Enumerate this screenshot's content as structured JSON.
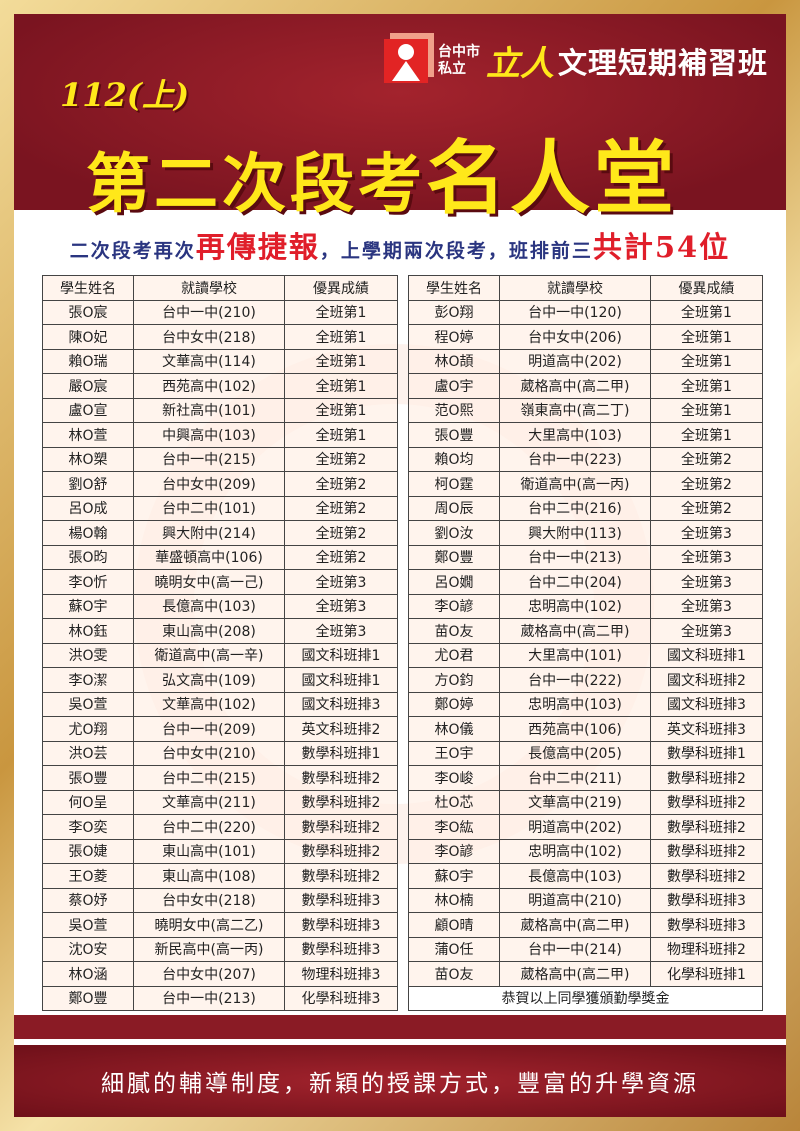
{
  "header": {
    "logo_small_1": "台中市",
    "logo_small_2": "私立",
    "logo_brand": "立人",
    "logo_name": "文理短期補習班",
    "term": "112(上)",
    "title_main": "第二次段考",
    "title_big": "名人堂"
  },
  "tagline": {
    "part1": "二次段考再次",
    "red1": "再傳捷報",
    "part2": "，上學期兩次段考，班排前三",
    "red2": "共計54位"
  },
  "columns": [
    "學生姓名",
    "就讀學校",
    "優異成績"
  ],
  "left_rows": [
    [
      "張O宸",
      "台中一中(210)",
      "全班第1"
    ],
    [
      "陳O妃",
      "台中女中(218)",
      "全班第1"
    ],
    [
      "賴O瑞",
      "文華高中(114)",
      "全班第1"
    ],
    [
      "嚴O宸",
      "西苑高中(102)",
      "全班第1"
    ],
    [
      "盧O宣",
      "新社高中(101)",
      "全班第1"
    ],
    [
      "林O萱",
      "中興高中(103)",
      "全班第1"
    ],
    [
      "林O槊",
      "台中一中(215)",
      "全班第2"
    ],
    [
      "劉O舒",
      "台中女中(209)",
      "全班第2"
    ],
    [
      "呂O成",
      "台中二中(101)",
      "全班第2"
    ],
    [
      "楊O翰",
      "興大附中(214)",
      "全班第2"
    ],
    [
      "張O昀",
      "華盛頓高中(106)",
      "全班第2"
    ],
    [
      "李O忻",
      "曉明女中(高一己)",
      "全班第3"
    ],
    [
      "蘇O宇",
      "長億高中(103)",
      "全班第3"
    ],
    [
      "林O鈺",
      "東山高中(208)",
      "全班第3"
    ],
    [
      "洪O雯",
      "衛道高中(高一辛)",
      "國文科班排1"
    ],
    [
      "李O潔",
      "弘文高中(109)",
      "國文科班排1"
    ],
    [
      "吳O萱",
      "文華高中(102)",
      "國文科班排3"
    ],
    [
      "尤O翔",
      "台中一中(209)",
      "英文科班排2"
    ],
    [
      "洪O芸",
      "台中女中(210)",
      "數學科班排1"
    ],
    [
      "張O豐",
      "台中二中(215)",
      "數學科班排2"
    ],
    [
      "何O呈",
      "文華高中(211)",
      "數學科班排2"
    ],
    [
      "李O奕",
      "台中二中(220)",
      "數學科班排2"
    ],
    [
      "張O婕",
      "東山高中(101)",
      "數學科班排2"
    ],
    [
      "王O菱",
      "東山高中(108)",
      "數學科班排2"
    ],
    [
      "蔡O妤",
      "台中女中(218)",
      "數學科班排3"
    ],
    [
      "吳O萱",
      "曉明女中(高二乙)",
      "數學科班排3"
    ],
    [
      "沈O安",
      "新民高中(高一丙)",
      "數學科班排3"
    ],
    [
      "林O涵",
      "台中女中(207)",
      "物理科班排3"
    ],
    [
      "鄭O豐",
      "台中一中(213)",
      "化學科班排3"
    ]
  ],
  "right_rows": [
    [
      "彭O翔",
      "台中一中(120)",
      "全班第1"
    ],
    [
      "程O婷",
      "台中女中(206)",
      "全班第1"
    ],
    [
      "林O頡",
      "明道高中(202)",
      "全班第1"
    ],
    [
      "盧O宇",
      "葳格高中(高二甲)",
      "全班第1"
    ],
    [
      "范O熙",
      "嶺東高中(高二丁)",
      "全班第1"
    ],
    [
      "張O豐",
      "大里高中(103)",
      "全班第1"
    ],
    [
      "賴O均",
      "台中一中(223)",
      "全班第2"
    ],
    [
      "柯O霆",
      "衛道高中(高一丙)",
      "全班第2"
    ],
    [
      "周O辰",
      "台中二中(216)",
      "全班第2"
    ],
    [
      "劉O汝",
      "興大附中(113)",
      "全班第3"
    ],
    [
      "鄭O豐",
      "台中一中(213)",
      "全班第3"
    ],
    [
      "呂O嫺",
      "台中二中(204)",
      "全班第3"
    ],
    [
      "李O諺",
      "忠明高中(102)",
      "全班第3"
    ],
    [
      "苗O友",
      "葳格高中(高二甲)",
      "全班第3"
    ],
    [
      "尤O君",
      "大里高中(101)",
      "國文科班排1"
    ],
    [
      "方O鈞",
      "台中一中(222)",
      "國文科班排2"
    ],
    [
      "鄭O婷",
      "忠明高中(103)",
      "國文科班排3"
    ],
    [
      "林O儀",
      "西苑高中(106)",
      "英文科班排3"
    ],
    [
      "王O宇",
      "長億高中(205)",
      "數學科班排1"
    ],
    [
      "李O峻",
      "台中二中(211)",
      "數學科班排2"
    ],
    [
      "杜O芯",
      "文華高中(219)",
      "數學科班排2"
    ],
    [
      "李O紘",
      "明道高中(202)",
      "數學科班排2"
    ],
    [
      "李O諺",
      "忠明高中(102)",
      "數學科班排2"
    ],
    [
      "蘇O宇",
      "長億高中(103)",
      "數學科班排2"
    ],
    [
      "林O楠",
      "明道高中(210)",
      "數學科班排3"
    ],
    [
      "顧O晴",
      "葳格高中(高二甲)",
      "數學科班排3"
    ],
    [
      "蒲O任",
      "台中一中(214)",
      "物理科班排2"
    ],
    [
      "苗O友",
      "葳格高中(高二甲)",
      "化學科班排1"
    ]
  ],
  "table_footer": "恭賀以上同學獲頒勤學獎金",
  "slogan": "細膩的輔導制度，新穎的授課方式，豐富的升學資源",
  "colors": {
    "header_red": "#8e1c26",
    "title_yellow": "#ffe81a",
    "tagline_blue": "#2a3580",
    "tagline_red": "#e01e2a",
    "frame_gold": "#d9b46a"
  }
}
